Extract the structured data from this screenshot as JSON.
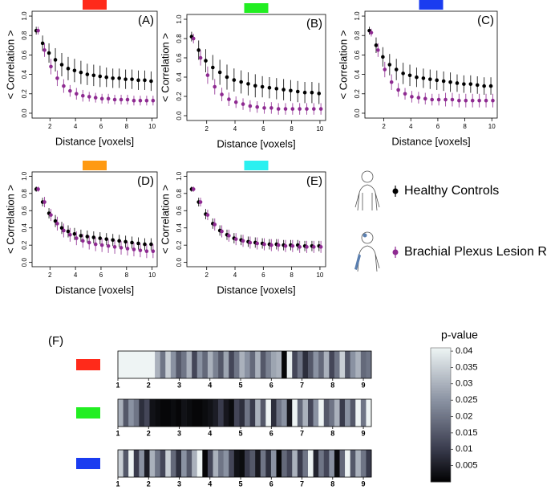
{
  "chart_data": [
    {
      "type": "errorbar",
      "panel_label": "(A)",
      "header_color": "#ff2a1a",
      "y_label": "< Correlation >",
      "x_label": "Distance [voxels]",
      "xlim": [
        0.6,
        10.4
      ],
      "ylim": [
        -0.05,
        1.05
      ],
      "xticks": [
        2,
        4,
        6,
        8,
        10
      ],
      "yticks": [
        {
          "value": 0,
          "label": "0.0"
        },
        {
          "value": 0.2,
          "label": "0.2"
        },
        {
          "value": 0.4,
          "label": "0.4"
        },
        {
          "value": 0.6,
          "label": "0.6"
        },
        {
          "value": 0.8,
          "label": "0.8"
        },
        {
          "value": 1,
          "label": "1.0"
        }
      ],
      "x": [
        1,
        1.5,
        2,
        2.5,
        3,
        3.5,
        4,
        4.5,
        5,
        5.5,
        6,
        6.5,
        7,
        7.5,
        8,
        8.5,
        9,
        9.5,
        10
      ],
      "series": [
        {
          "name": "Healthy Controls",
          "color": "#000000",
          "values": [
            0.85,
            0.72,
            0.62,
            0.55,
            0.5,
            0.46,
            0.44,
            0.42,
            0.4,
            0.39,
            0.38,
            0.37,
            0.36,
            0.36,
            0.35,
            0.35,
            0.34,
            0.34,
            0.33
          ],
          "errors": [
            0.04,
            0.08,
            0.1,
            0.12,
            0.12,
            0.12,
            0.12,
            0.12,
            0.11,
            0.11,
            0.11,
            0.1,
            0.1,
            0.1,
            0.1,
            0.1,
            0.1,
            0.1,
            0.1
          ]
        },
        {
          "name": "Brachial Plexus Lesion R",
          "color": "#8e2a91",
          "values": [
            0.85,
            0.65,
            0.48,
            0.36,
            0.28,
            0.23,
            0.2,
            0.18,
            0.17,
            0.16,
            0.15,
            0.15,
            0.14,
            0.14,
            0.14,
            0.13,
            0.13,
            0.13,
            0.13
          ],
          "errors": [
            0.04,
            0.07,
            0.08,
            0.08,
            0.07,
            0.06,
            0.06,
            0.06,
            0.05,
            0.05,
            0.05,
            0.05,
            0.05,
            0.05,
            0.05,
            0.05,
            0.05,
            0.05,
            0.05
          ]
        }
      ]
    },
    {
      "type": "errorbar",
      "panel_label": "(B)",
      "header_color": "#22ee22",
      "y_label": "< Correlation >",
      "x_label": "Distance [voxels]",
      "xlim": [
        0.6,
        10.4
      ],
      "ylim": [
        -0.05,
        1.05
      ],
      "xticks": [
        2,
        4,
        6,
        8,
        10
      ],
      "yticks": [
        {
          "value": 0,
          "label": "0.0"
        },
        {
          "value": 0.2,
          "label": "0.2"
        },
        {
          "value": 0.4,
          "label": "0.4"
        },
        {
          "value": 0.6,
          "label": "0.6"
        },
        {
          "value": 0.8,
          "label": "0.8"
        },
        {
          "value": 1,
          "label": "1.0"
        }
      ],
      "x": [
        1,
        1.5,
        2,
        2.5,
        3,
        3.5,
        4,
        4.5,
        5,
        5.5,
        6,
        6.5,
        7,
        7.5,
        8,
        8.5,
        9,
        9.5,
        10
      ],
      "series": [
        {
          "color": "#000000",
          "values": [
            0.82,
            0.68,
            0.57,
            0.5,
            0.45,
            0.4,
            0.37,
            0.35,
            0.33,
            0.31,
            0.3,
            0.29,
            0.28,
            0.27,
            0.26,
            0.25,
            0.24,
            0.24,
            0.23
          ],
          "errors": [
            0.05,
            0.1,
            0.12,
            0.13,
            0.13,
            0.13,
            0.12,
            0.12,
            0.12,
            0.12,
            0.11,
            0.11,
            0.11,
            0.11,
            0.11,
            0.11,
            0.11,
            0.11,
            0.11
          ]
        },
        {
          "color": "#8e2a91",
          "values": [
            0.8,
            0.6,
            0.42,
            0.3,
            0.22,
            0.17,
            0.14,
            0.12,
            0.1,
            0.09,
            0.08,
            0.08,
            0.07,
            0.07,
            0.07,
            0.07,
            0.07,
            0.07,
            0.07
          ],
          "errors": [
            0.05,
            0.08,
            0.09,
            0.08,
            0.07,
            0.07,
            0.06,
            0.06,
            0.06,
            0.06,
            0.06,
            0.06,
            0.06,
            0.06,
            0.06,
            0.06,
            0.06,
            0.06,
            0.06
          ]
        }
      ]
    },
    {
      "type": "errorbar",
      "panel_label": "(C)",
      "header_color": "#1a3cf0",
      "y_label": "< Correlation >",
      "x_label": "Distance [voxels]",
      "xlim": [
        0.6,
        10.4
      ],
      "ylim": [
        -0.05,
        1.05
      ],
      "xticks": [
        2,
        4,
        6,
        8,
        10
      ],
      "yticks": [
        {
          "value": 0,
          "label": "0.0"
        },
        {
          "value": 0.2,
          "label": "0.2"
        },
        {
          "value": 0.4,
          "label": "0.4"
        },
        {
          "value": 0.6,
          "label": "0.6"
        },
        {
          "value": 0.8,
          "label": "0.8"
        },
        {
          "value": 1,
          "label": "1.0"
        }
      ],
      "x": [
        1,
        1.5,
        2,
        2.5,
        3,
        3.5,
        4,
        4.5,
        5,
        5.5,
        6,
        6.5,
        7,
        7.5,
        8,
        8.5,
        9,
        9.5,
        10
      ],
      "series": [
        {
          "color": "#000000",
          "values": [
            0.85,
            0.7,
            0.58,
            0.5,
            0.45,
            0.41,
            0.39,
            0.37,
            0.36,
            0.35,
            0.34,
            0.33,
            0.32,
            0.31,
            0.3,
            0.3,
            0.29,
            0.28,
            0.28
          ],
          "errors": [
            0.04,
            0.08,
            0.1,
            0.11,
            0.11,
            0.11,
            0.11,
            0.1,
            0.1,
            0.1,
            0.1,
            0.1,
            0.1,
            0.09,
            0.09,
            0.09,
            0.09,
            0.09,
            0.09
          ]
        },
        {
          "color": "#8e2a91",
          "values": [
            0.83,
            0.65,
            0.45,
            0.32,
            0.24,
            0.2,
            0.17,
            0.16,
            0.15,
            0.14,
            0.14,
            0.14,
            0.14,
            0.13,
            0.13,
            0.13,
            0.13,
            0.13,
            0.13
          ],
          "errors": [
            0.04,
            0.07,
            0.08,
            0.08,
            0.07,
            0.06,
            0.06,
            0.06,
            0.06,
            0.06,
            0.06,
            0.07,
            0.07,
            0.07,
            0.07,
            0.07,
            0.07,
            0.07,
            0.07
          ]
        }
      ]
    },
    {
      "type": "errorbar",
      "panel_label": "(D)",
      "header_color": "#ff9a12",
      "y_label": "< Correlation >",
      "x_label": "Distance [voxels]",
      "xlim": [
        0.6,
        10.4
      ],
      "ylim": [
        -0.05,
        1.05
      ],
      "xticks": [
        2,
        4,
        6,
        8,
        10
      ],
      "yticks": [
        {
          "value": 0,
          "label": "0.0"
        },
        {
          "value": 0.2,
          "label": "0.2"
        },
        {
          "value": 0.4,
          "label": "0.4"
        },
        {
          "value": 0.6,
          "label": "0.6"
        },
        {
          "value": 0.8,
          "label": "0.8"
        },
        {
          "value": 1,
          "label": "1.0"
        }
      ],
      "x": [
        1,
        1.5,
        2,
        2.5,
        3,
        3.5,
        4,
        4.5,
        5,
        5.5,
        6,
        6.5,
        7,
        7.5,
        8,
        8.5,
        9,
        9.5,
        10
      ],
      "series": [
        {
          "color": "#000000",
          "values": [
            0.85,
            0.7,
            0.57,
            0.48,
            0.4,
            0.36,
            0.33,
            0.31,
            0.3,
            0.29,
            0.28,
            0.27,
            0.26,
            0.25,
            0.24,
            0.23,
            0.22,
            0.21,
            0.21
          ],
          "errors": [
            0.03,
            0.05,
            0.06,
            0.07,
            0.07,
            0.07,
            0.07,
            0.07,
            0.07,
            0.07,
            0.07,
            0.07,
            0.07,
            0.07,
            0.07,
            0.07,
            0.07,
            0.07,
            0.07
          ]
        },
        {
          "color": "#8e2a91",
          "values": [
            0.85,
            0.7,
            0.55,
            0.45,
            0.37,
            0.32,
            0.28,
            0.25,
            0.23,
            0.21,
            0.2,
            0.19,
            0.18,
            0.17,
            0.16,
            0.15,
            0.14,
            0.13,
            0.13
          ],
          "errors": [
            0.03,
            0.06,
            0.07,
            0.08,
            0.08,
            0.08,
            0.08,
            0.08,
            0.08,
            0.08,
            0.08,
            0.08,
            0.08,
            0.08,
            0.08,
            0.08,
            0.08,
            0.08,
            0.08
          ]
        }
      ]
    },
    {
      "type": "errorbar",
      "panel_label": "(E)",
      "header_color": "#2af0f0",
      "y_label": "< Correlation >",
      "x_label": "Distance [voxels]",
      "xlim": [
        0.6,
        10.4
      ],
      "ylim": [
        -0.05,
        1.05
      ],
      "xticks": [
        2,
        4,
        6,
        8,
        10
      ],
      "yticks": [
        {
          "value": 0,
          "label": "0.0"
        },
        {
          "value": 0.2,
          "label": "0.2"
        },
        {
          "value": 0.4,
          "label": "0.4"
        },
        {
          "value": 0.6,
          "label": "0.6"
        },
        {
          "value": 0.8,
          "label": "0.8"
        },
        {
          "value": 1,
          "label": "1.0"
        }
      ],
      "x": [
        1,
        1.5,
        2,
        2.5,
        3,
        3.5,
        4,
        4.5,
        5,
        5.5,
        6,
        6.5,
        7,
        7.5,
        8,
        8.5,
        9,
        9.5,
        10
      ],
      "series": [
        {
          "color": "#000000",
          "values": [
            0.85,
            0.7,
            0.56,
            0.45,
            0.37,
            0.32,
            0.28,
            0.26,
            0.24,
            0.23,
            0.22,
            0.21,
            0.21,
            0.2,
            0.2,
            0.2,
            0.19,
            0.19,
            0.19
          ],
          "errors": [
            0.03,
            0.05,
            0.06,
            0.06,
            0.06,
            0.06,
            0.06,
            0.06,
            0.06,
            0.06,
            0.06,
            0.06,
            0.06,
            0.06,
            0.06,
            0.06,
            0.06,
            0.06,
            0.06
          ]
        },
        {
          "color": "#8e2a91",
          "values": [
            0.85,
            0.7,
            0.55,
            0.44,
            0.36,
            0.31,
            0.27,
            0.25,
            0.23,
            0.22,
            0.21,
            0.2,
            0.2,
            0.19,
            0.19,
            0.18,
            0.18,
            0.18,
            0.18
          ],
          "errors": [
            0.03,
            0.05,
            0.06,
            0.07,
            0.07,
            0.07,
            0.07,
            0.07,
            0.07,
            0.07,
            0.07,
            0.07,
            0.07,
            0.07,
            0.07,
            0.07,
            0.07,
            0.07,
            0.07
          ]
        }
      ]
    },
    {
      "type": "heatmap",
      "panel_label": "(F)",
      "colorbar_title": "p-value",
      "xlim": [
        1,
        9.26
      ],
      "xticks": [
        1,
        2,
        3,
        4,
        5,
        6,
        7,
        8,
        9
      ],
      "clim": [
        0,
        0.041
      ],
      "cticks": [
        0.005,
        0.01,
        0.015,
        0.02,
        0.025,
        0.03,
        0.035,
        0.04
      ],
      "rows": [
        {
          "color": "#ff2a1a",
          "values": [
            0.041,
            0.041,
            0.041,
            0.041,
            0.041,
            0.041,
            0.041,
            0.03,
            0.02,
            0.035,
            0.025,
            0.015,
            0.02,
            0.03,
            0.012,
            0.025,
            0.018,
            0.03,
            0.022,
            0.015,
            0.028,
            0.012,
            0.02,
            0.03,
            0.025,
            0.018,
            0.03,
            0.015,
            0.022,
            0.028,
            0.03,
            0.001,
            0.04,
            0.012,
            0.02,
            0.008,
            0.015,
            0.025,
            0.018,
            0.03,
            0.012,
            0.02,
            0.035,
            0.015,
            0.025,
            0.03,
            0.018,
            0.02
          ]
        },
        {
          "color": "#22ee22",
          "values": [
            0.03,
            0.015,
            0.025,
            0.02,
            0.008,
            0.012,
            0.003,
            0.002,
            0.001,
            0.001,
            0.002,
            0.001,
            0.003,
            0.002,
            0.001,
            0.001,
            0.002,
            0.003,
            0.005,
            0.01,
            0.004,
            0.002,
            0.012,
            0.008,
            0.02,
            0.01,
            0.03,
            0.015,
            0.041,
            0.008,
            0.02,
            0.025,
            0.004,
            0.041,
            0.018,
            0.03,
            0.012,
            0.025,
            0.041,
            0.015,
            0.02,
            0.03,
            0.01,
            0.025,
            0.015,
            0.041,
            0.02,
            0.041
          ]
        },
        {
          "color": "#1a3cf0",
          "values": [
            0.035,
            0.015,
            0.041,
            0.01,
            0.025,
            0.005,
            0.03,
            0.02,
            0.012,
            0.035,
            0.018,
            0.008,
            0.025,
            0.015,
            0.03,
            0.041,
            0.001,
            0.012,
            0.03,
            0.02,
            0.025,
            0.012,
            0.003,
            0.002,
            0.01,
            0.015,
            0.004,
            0.02,
            0.008,
            0.025,
            0.001,
            0.018,
            0.012,
            0.03,
            0.01,
            0.02,
            0.041,
            0.006,
            0.02,
            0.012,
            0.025,
            0.002,
            0.018,
            0.041,
            0.015,
            0.03,
            0.02,
            0.01
          ]
        }
      ]
    }
  ]
}
